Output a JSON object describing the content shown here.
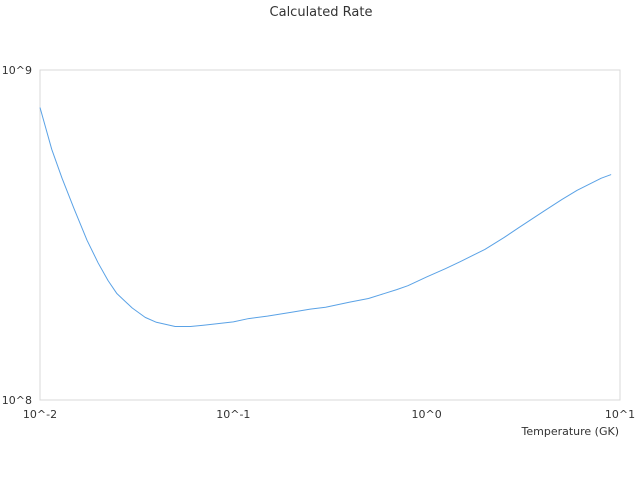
{
  "chart_data": {
    "type": "line",
    "title": "Calculated Rate",
    "xlabel": "Temperature (GK)",
    "ylabel": "",
    "x_scale": "log",
    "y_scale": "log",
    "xlim": [
      0.01,
      10
    ],
    "ylim": [
      100000000,
      1000000000
    ],
    "x_ticks": [
      {
        "value": 0.01,
        "label": "10^-2"
      },
      {
        "value": 0.1,
        "label": "10^-1"
      },
      {
        "value": 1,
        "label": "10^0"
      },
      {
        "value": 10,
        "label": "10^1"
      }
    ],
    "y_ticks": [
      {
        "value": 100000000,
        "label": "10^8"
      },
      {
        "value": 1000000000,
        "label": "10^9"
      }
    ],
    "grid": false,
    "legend": "none",
    "series": [
      {
        "color": "#5aa2e6",
        "x": [
          0.01,
          0.0115,
          0.013,
          0.015,
          0.0175,
          0.02,
          0.0225,
          0.025,
          0.03,
          0.035,
          0.04,
          0.05,
          0.06,
          0.07,
          0.08,
          0.1,
          0.12,
          0.15,
          0.2,
          0.25,
          0.3,
          0.4,
          0.5,
          0.6,
          0.7,
          0.8,
          1,
          1.25,
          1.5,
          2,
          2.5,
          3,
          4,
          5,
          6,
          7,
          8,
          9
        ],
        "y": [
          770000000,
          575000000,
          470000000,
          380000000,
          305000000,
          260000000,
          230000000,
          210000000,
          190000000,
          178000000,
          172000000,
          167000000,
          167000000,
          168500000,
          170000000,
          172500000,
          176500000,
          179500000,
          184500000,
          188500000,
          191000000,
          198000000,
          203000000,
          210000000,
          216000000,
          222000000,
          236000000,
          250000000,
          263000000,
          286000000,
          310000000,
          333000000,
          372000000,
          405000000,
          432000000,
          452000000,
          470000000,
          482000000
        ]
      }
    ]
  }
}
